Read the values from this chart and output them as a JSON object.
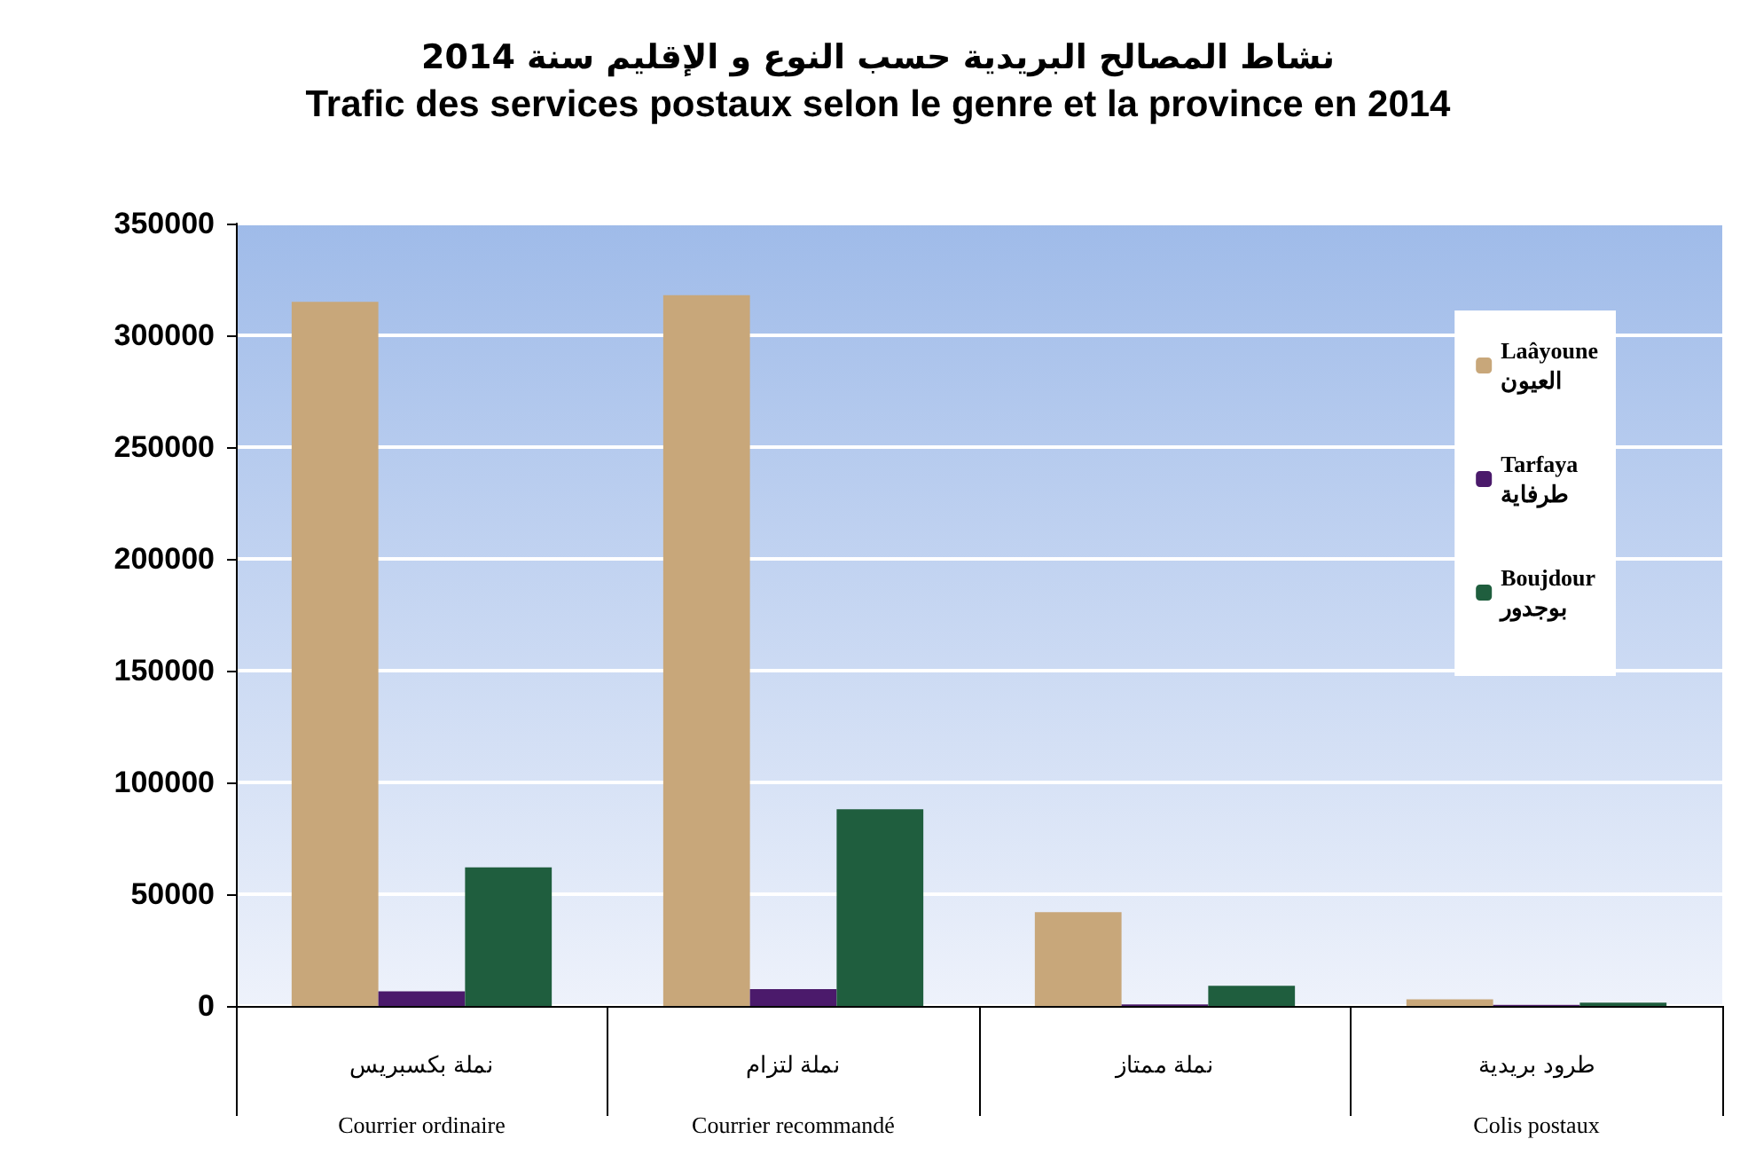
{
  "chart_data": {
    "type": "bar",
    "title": "نشاط المصالح البريدية حسب النوع و الإقليم سنة 2014",
    "subtitle": "Trafic des services postaux selon le genre et la province en 2014",
    "categories": [
      "نملة بكسبريس\nCourrier ordinaire",
      "نملة لتزام\nCourrier recommandé",
      "نملة ممتاز",
      "طرود بريدية\nColis postaux"
    ],
    "series": [
      {
        "name": "Laâyoune\nالعيون",
        "color": "#c8a77a",
        "values": [
          315000,
          318000,
          42000,
          3000
        ]
      },
      {
        "name": "Tarfaya\nطرفاية",
        "color": "#4b1a6b",
        "values": [
          6500,
          7500,
          700,
          500
        ]
      },
      {
        "name": "Boujdour\nبوجدور",
        "color": "#1f5e3e",
        "values": [
          62000,
          88000,
          9000,
          1500
        ]
      }
    ],
    "ylim": [
      0,
      350000
    ],
    "yticks": [
      0,
      50000,
      100000,
      150000,
      200000,
      250000,
      300000,
      350000
    ],
    "grid": "y",
    "legend": "top right"
  }
}
